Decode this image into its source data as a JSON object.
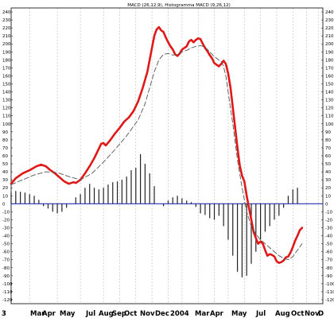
{
  "chart_data": {
    "type": "line",
    "title": "MACD (26,12,9), Histogramma MACD (9,26,12)",
    "ylim": [
      -125,
      245
    ],
    "y_ticks": [
      -120,
      -110,
      -100,
      -90,
      -80,
      -70,
      -60,
      -50,
      -40,
      -30,
      -20,
      -10,
      0,
      10,
      20,
      30,
      40,
      50,
      60,
      70,
      80,
      90,
      100,
      110,
      120,
      130,
      140,
      150,
      160,
      170,
      180,
      190,
      200,
      210,
      220,
      230,
      240
    ],
    "x_month_labels": [
      "3",
      "Mar",
      "Apr",
      "May",
      "Jul",
      "Aug",
      "Sep",
      "Oct",
      "Nov",
      "Dec",
      "2004",
      "Mar",
      "Apr",
      "May",
      "Jul",
      "Aug",
      "Oct",
      "Nov",
      "D"
    ],
    "grid": true,
    "zero_line_color": "#1f2fb8",
    "series": [
      {
        "role": "macd",
        "color": "#e01818",
        "style": "solid",
        "points": [
          [
            0,
            25
          ],
          [
            2,
            32
          ],
          [
            5,
            38
          ],
          [
            8,
            42
          ],
          [
            11,
            47
          ],
          [
            13,
            49
          ],
          [
            15,
            47
          ],
          [
            17,
            42
          ],
          [
            19,
            38
          ],
          [
            21,
            33
          ],
          [
            23,
            28
          ],
          [
            25,
            25
          ],
          [
            27,
            27
          ],
          [
            28,
            26
          ],
          [
            30,
            30
          ],
          [
            32,
            38
          ],
          [
            34,
            47
          ],
          [
            36,
            57
          ],
          [
            38,
            69
          ],
          [
            39,
            75
          ],
          [
            40,
            76
          ],
          [
            41,
            73
          ],
          [
            43,
            80
          ],
          [
            45,
            88
          ],
          [
            47,
            95
          ],
          [
            49,
            103
          ],
          [
            51,
            108
          ],
          [
            53,
            116
          ],
          [
            55,
            128
          ],
          [
            57,
            145
          ],
          [
            59,
            165
          ],
          [
            60,
            180
          ],
          [
            61,
            195
          ],
          [
            62,
            210
          ],
          [
            63,
            218
          ],
          [
            64,
            221
          ],
          [
            65,
            217
          ],
          [
            66,
            215
          ],
          [
            67,
            208
          ],
          [
            68,
            202
          ],
          [
            69,
            197
          ],
          [
            70,
            193
          ],
          [
            71,
            187
          ],
          [
            72,
            185
          ],
          [
            73,
            188
          ],
          [
            74,
            193
          ],
          [
            75,
            195
          ],
          [
            76,
            197
          ],
          [
            77,
            203
          ],
          [
            78,
            205
          ],
          [
            79,
            202
          ],
          [
            80,
            205
          ],
          [
            81,
            207
          ],
          [
            82,
            206
          ],
          [
            83,
            200
          ],
          [
            84,
            195
          ],
          [
            85,
            191
          ],
          [
            86,
            186
          ],
          [
            87,
            182
          ],
          [
            88,
            176
          ],
          [
            89,
            174
          ],
          [
            90,
            172
          ],
          [
            91,
            175
          ],
          [
            92,
            179
          ],
          [
            93,
            175
          ],
          [
            94,
            163
          ],
          [
            95,
            145
          ],
          [
            96,
            120
          ],
          [
            97,
            95
          ],
          [
            98,
            70
          ],
          [
            99,
            48
          ],
          [
            100,
            35
          ],
          [
            101,
            28
          ],
          [
            102,
            10
          ],
          [
            103,
            -5
          ],
          [
            104,
            -20
          ],
          [
            105,
            -35
          ],
          [
            106,
            -43
          ],
          [
            107,
            -50
          ],
          [
            108,
            -47
          ],
          [
            109,
            -50
          ],
          [
            110,
            -58
          ],
          [
            111,
            -65
          ],
          [
            112,
            -63
          ],
          [
            113,
            -64
          ],
          [
            114,
            -66
          ],
          [
            115,
            -72
          ],
          [
            116,
            -74
          ],
          [
            117,
            -73
          ],
          [
            118,
            -71
          ],
          [
            119,
            -67
          ],
          [
            120,
            -66
          ],
          [
            121,
            -61
          ],
          [
            122,
            -54
          ],
          [
            123,
            -46
          ],
          [
            124,
            -40
          ],
          [
            125,
            -33
          ],
          [
            126,
            -30
          ]
        ]
      },
      {
        "role": "signal",
        "color": "#555555",
        "style": "dashed",
        "points": [
          [
            0,
            24
          ],
          [
            5,
            30
          ],
          [
            10,
            36
          ],
          [
            15,
            40
          ],
          [
            20,
            39
          ],
          [
            25,
            34
          ],
          [
            30,
            30
          ],
          [
            35,
            38
          ],
          [
            40,
            52
          ],
          [
            45,
            68
          ],
          [
            50,
            85
          ],
          [
            55,
            105
          ],
          [
            58,
            125
          ],
          [
            60,
            145
          ],
          [
            62,
            165
          ],
          [
            64,
            180
          ],
          [
            66,
            187
          ],
          [
            68,
            188
          ],
          [
            70,
            186
          ],
          [
            72,
            187
          ],
          [
            74,
            190
          ],
          [
            76,
            192
          ],
          [
            78,
            195
          ],
          [
            80,
            197
          ],
          [
            82,
            198
          ],
          [
            84,
            196
          ],
          [
            86,
            190
          ],
          [
            88,
            184
          ],
          [
            90,
            180
          ],
          [
            91,
            178
          ],
          [
            92,
            172
          ],
          [
            93,
            160
          ],
          [
            94,
            140
          ],
          [
            96,
            100
          ],
          [
            98,
            55
          ],
          [
            100,
            20
          ],
          [
            102,
            -10
          ],
          [
            104,
            -28
          ],
          [
            106,
            -38
          ],
          [
            108,
            -45
          ],
          [
            110,
            -50
          ],
          [
            112,
            -55
          ],
          [
            114,
            -60
          ],
          [
            116,
            -65
          ],
          [
            118,
            -68
          ],
          [
            120,
            -70
          ],
          [
            122,
            -66
          ],
          [
            124,
            -58
          ],
          [
            126,
            -50
          ]
        ]
      }
    ],
    "histogram": {
      "color": "#222222",
      "points": [
        [
          0,
          14
        ],
        [
          2,
          16
        ],
        [
          4,
          15
        ],
        [
          6,
          14
        ],
        [
          8,
          12
        ],
        [
          10,
          10
        ],
        [
          12,
          5
        ],
        [
          14,
          -3
        ],
        [
          16,
          -6
        ],
        [
          18,
          -10
        ],
        [
          20,
          -12
        ],
        [
          22,
          -10
        ],
        [
          24,
          -5
        ],
        [
          26,
          0
        ],
        [
          28,
          8
        ],
        [
          30,
          12
        ],
        [
          32,
          20
        ],
        [
          34,
          25
        ],
        [
          36,
          20
        ],
        [
          38,
          18
        ],
        [
          40,
          20
        ],
        [
          42,
          24
        ],
        [
          44,
          27
        ],
        [
          46,
          28
        ],
        [
          48,
          30
        ],
        [
          50,
          34
        ],
        [
          52,
          42
        ],
        [
          54,
          45
        ],
        [
          56,
          62
        ],
        [
          58,
          50
        ],
        [
          60,
          38
        ],
        [
          62,
          22
        ],
        [
          64,
          0
        ],
        [
          66,
          -3
        ],
        [
          68,
          4
        ],
        [
          70,
          8
        ],
        [
          72,
          10
        ],
        [
          74,
          7
        ],
        [
          76,
          4
        ],
        [
          78,
          2
        ],
        [
          80,
          -4
        ],
        [
          82,
          -12
        ],
        [
          84,
          -14
        ],
        [
          86,
          -18
        ],
        [
          88,
          -20
        ],
        [
          90,
          -15
        ],
        [
          92,
          -28
        ],
        [
          94,
          -45
        ],
        [
          96,
          -65
        ],
        [
          98,
          -85
        ],
        [
          100,
          -92
        ],
        [
          102,
          -90
        ],
        [
          104,
          -75
        ],
        [
          106,
          -60
        ],
        [
          108,
          -45
        ],
        [
          110,
          -35
        ],
        [
          112,
          -28
        ],
        [
          114,
          -20
        ],
        [
          116,
          -15
        ],
        [
          118,
          -5
        ],
        [
          120,
          10
        ],
        [
          122,
          18
        ],
        [
          124,
          20
        ]
      ]
    }
  }
}
